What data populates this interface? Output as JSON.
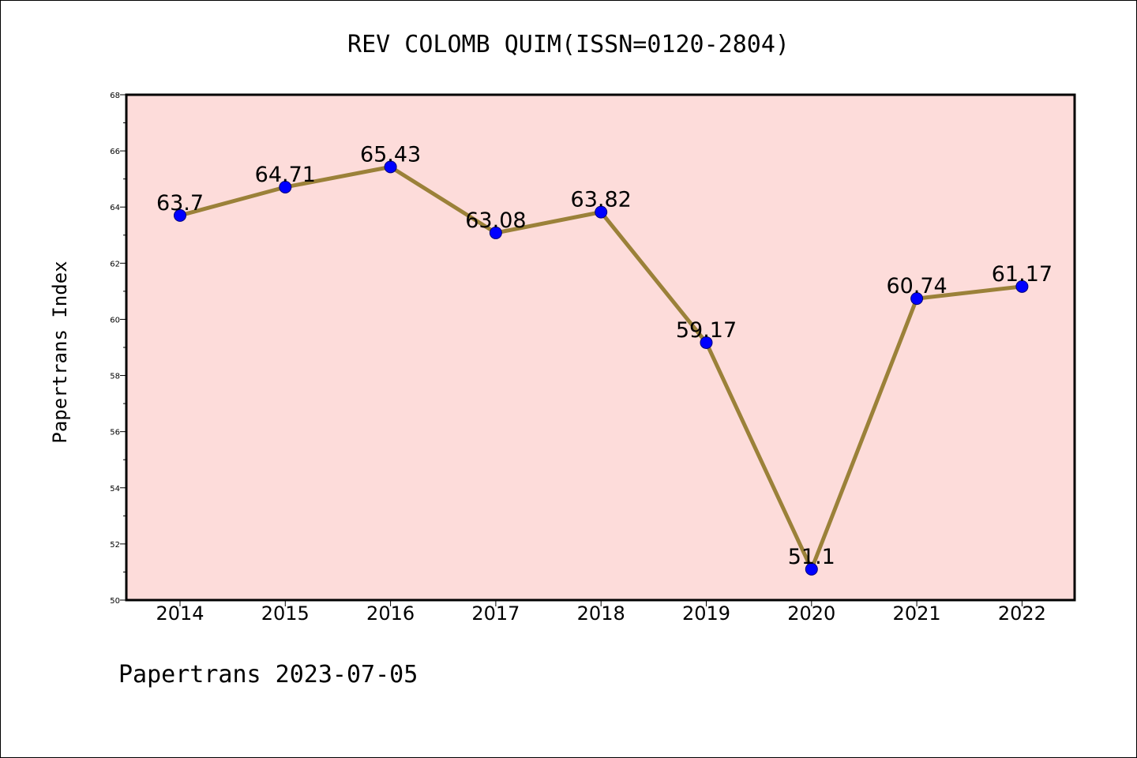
{
  "chart_data": {
    "type": "line",
    "title": "REV COLOMB QUIM(ISSN=0120-2804)",
    "xlabel": "",
    "ylabel": "Papertrans Index",
    "categories": [
      "2014",
      "2015",
      "2016",
      "2017",
      "2018",
      "2019",
      "2020",
      "2021",
      "2022"
    ],
    "series": [
      {
        "values": [
          63.7,
          64.71,
          65.43,
          63.08,
          63.82,
          59.17,
          51.1,
          60.74,
          61.17
        ],
        "labels": [
          "63.7",
          "64.71",
          "65.43",
          "63.08",
          "63.82",
          "59.17",
          "51.1",
          "60.74",
          "61.17"
        ]
      }
    ],
    "ylim": [
      50,
      68
    ],
    "yticks": [
      "50",
      "52",
      "54",
      "56",
      "58",
      "60",
      "62",
      "64",
      "66",
      "68"
    ],
    "grid": false,
    "legend": "none"
  },
  "footer": "Papertrans 2023-07-05",
  "colors": {
    "plot_background": "#FDDCDA",
    "line": "#9B8139",
    "marker": "#0000FF",
    "page_background": "#FFFFFF"
  }
}
